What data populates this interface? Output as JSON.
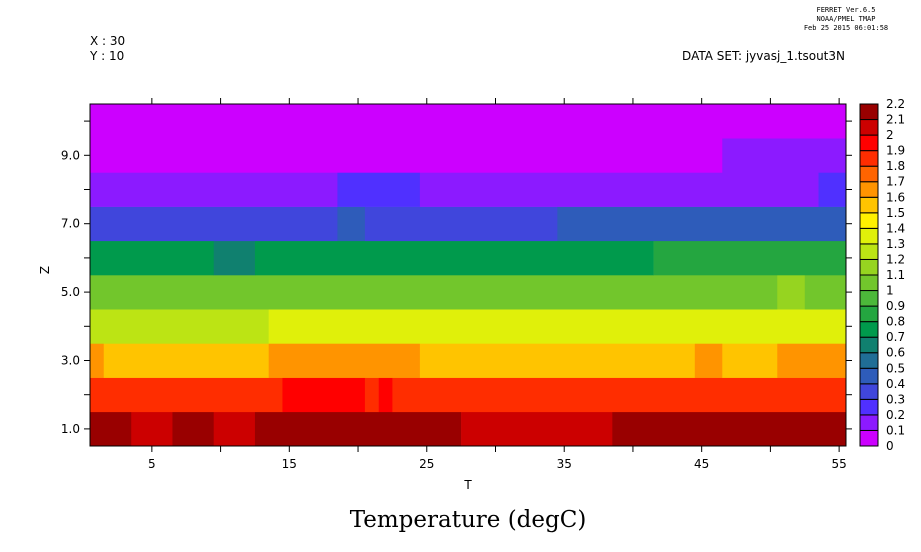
{
  "header": {
    "ferret_version": "FERRET  Ver.6.5",
    "org": "NOAA/PMEL TMAP",
    "timestamp": "Feb 25 2015 06:01:58",
    "x_label": "X : 30",
    "y_label": "Y : 10",
    "dataset": "DATA SET: jyvasj_1.tsout3N"
  },
  "chart_data": {
    "type": "heatmap",
    "title": "Temperature (degC)",
    "xlabel": "T",
    "ylabel": "Z",
    "xlim": [
      0.5,
      55.5
    ],
    "ylim": [
      0.5,
      10.5
    ],
    "x_ticks": [
      5,
      15,
      25,
      35,
      45,
      55
    ],
    "x_minor_ticks": [
      10,
      20,
      30,
      40,
      50
    ],
    "y_ticks": [
      "1.0",
      "3.0",
      "5.0",
      "7.0",
      "9.0"
    ],
    "y_tick_values": [
      1,
      3,
      5,
      7,
      9
    ],
    "note": "rows given as runs of [value, number of T steps], T from 1 to 55",
    "rows": [
      {
        "z": 1,
        "runs": [
          [
            2.15,
            3
          ],
          [
            2.05,
            3
          ],
          [
            2.15,
            3
          ],
          [
            2.05,
            3
          ],
          [
            2.15,
            15
          ],
          [
            2.05,
            11
          ],
          [
            2.15,
            17
          ]
        ]
      },
      {
        "z": 2,
        "runs": [
          [
            1.85,
            14
          ],
          [
            1.95,
            6
          ],
          [
            1.85,
            1
          ],
          [
            1.95,
            1
          ],
          [
            1.85,
            33
          ]
        ]
      },
      {
        "z": 3,
        "runs": [
          [
            1.65,
            1
          ],
          [
            1.55,
            12
          ],
          [
            1.65,
            11
          ],
          [
            1.55,
            20
          ],
          [
            1.65,
            2
          ],
          [
            1.55,
            4
          ],
          [
            1.65,
            5
          ]
        ]
      },
      {
        "z": 4,
        "runs": [
          [
            1.25,
            13
          ],
          [
            1.35,
            42
          ]
        ]
      },
      {
        "z": 5,
        "runs": [
          [
            1.05,
            50
          ],
          [
            1.15,
            2
          ],
          [
            1.05,
            3
          ]
        ]
      },
      {
        "z": 6,
        "runs": [
          [
            0.75,
            9
          ],
          [
            0.65,
            3
          ],
          [
            0.75,
            29
          ],
          [
            0.85,
            14
          ]
        ]
      },
      {
        "z": 7,
        "runs": [
          [
            0.35,
            18
          ],
          [
            0.45,
            2
          ],
          [
            0.35,
            14
          ],
          [
            0.45,
            21
          ]
        ]
      },
      {
        "z": 8,
        "runs": [
          [
            0.15,
            18
          ],
          [
            0.25,
            6
          ],
          [
            0.15,
            29
          ],
          [
            0.25,
            2
          ]
        ]
      },
      {
        "z": 9,
        "runs": [
          [
            0.05,
            46
          ],
          [
            0.15,
            9
          ]
        ]
      },
      {
        "z": 10,
        "runs": [
          [
            0.05,
            55
          ]
        ]
      }
    ],
    "colorbar": {
      "levels": [
        "0",
        "0.1",
        "0.2",
        "0.3",
        "0.4",
        "0.5",
        "0.6",
        "0.7",
        "0.8",
        "0.9",
        "1",
        "1.1",
        "1.2",
        "1.3",
        "1.4",
        "1.5",
        "1.6",
        "1.7",
        "1.8",
        "1.9",
        "2",
        "2.1",
        "2.2"
      ],
      "colors": [
        "#cc00ff",
        "#8c1aff",
        "#5030ff",
        "#4046dc",
        "#2e5cba",
        "#206e96",
        "#10806f",
        "#009a4c",
        "#24a640",
        "#4cb83a",
        "#72c62c",
        "#96d420",
        "#bce414",
        "#e0f00a",
        "#fff000",
        "#ffc400",
        "#ff9400",
        "#ff6400",
        "#ff2d00",
        "#ff0000",
        "#cc0000",
        "#990000"
      ]
    }
  }
}
